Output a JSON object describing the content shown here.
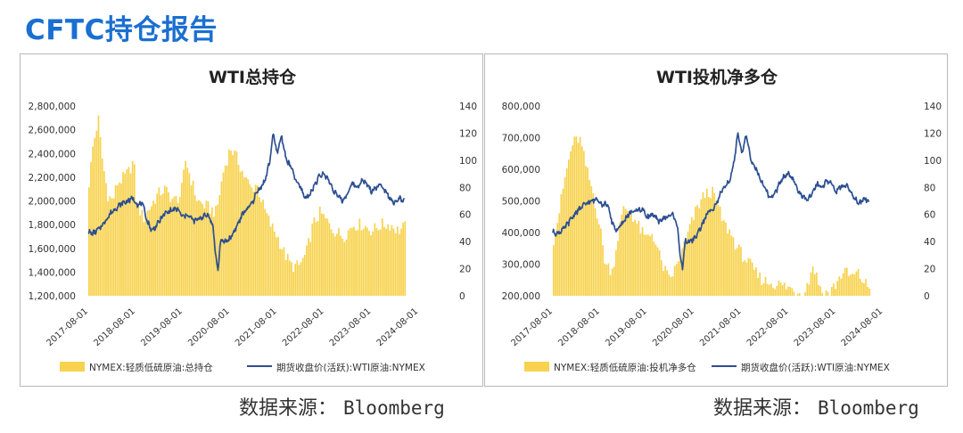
{
  "page": {
    "title": "CFTC持仓报告"
  },
  "colors": {
    "bar": "#f7d24e",
    "line": "#2d4f91",
    "title": "#1a6fd1"
  },
  "chart_data": [
    {
      "type": "bar",
      "title": "WTI总持仓",
      "x_labels": [
        "2017-08-01",
        "2018-08-01",
        "2019-08-01",
        "2020-08-01",
        "2021-08-01",
        "2022-08-01",
        "2023-08-01",
        "2024-08-01"
      ],
      "y_left": {
        "min": 1200000,
        "max": 2800000,
        "step": 200000,
        "ticks": [
          "1,200,000",
          "1,400,000",
          "1,600,000",
          "1,800,000",
          "2,000,000",
          "2,200,000",
          "2,400,000",
          "2,600,000",
          "2,800,000"
        ]
      },
      "y_right": {
        "min": 0,
        "max": 140,
        "step": 20,
        "ticks": [
          "0",
          "20",
          "40",
          "60",
          "80",
          "100",
          "120",
          "140"
        ]
      },
      "series": [
        {
          "name": "NYMEX:轻质低硫原油:总持仓",
          "kind": "bar",
          "anchors": [
            [
              0,
              2150000
            ],
            [
              0.08,
              2450000
            ],
            [
              0.15,
              2600000
            ],
            [
              0.21,
              2700000
            ],
            [
              0.25,
              2450000
            ],
            [
              0.3,
              2300000
            ],
            [
              0.4,
              2050000
            ],
            [
              0.5,
              2000000
            ],
            [
              0.6,
              2150000
            ],
            [
              0.75,
              2200000
            ],
            [
              0.85,
              2250000
            ],
            [
              0.95,
              2350000
            ],
            [
              1.0,
              2000000
            ],
            [
              1.15,
              1850000
            ],
            [
              1.3,
              1950000
            ],
            [
              1.45,
              2050000
            ],
            [
              1.6,
              2100000
            ],
            [
              1.8,
              2000000
            ],
            [
              1.95,
              2050000
            ],
            [
              2.05,
              2350000
            ],
            [
              2.15,
              2200000
            ],
            [
              2.3,
              2000000
            ],
            [
              2.5,
              1950000
            ],
            [
              2.7,
              1900000
            ],
            [
              2.85,
              2250000
            ],
            [
              3.0,
              2450000
            ],
            [
              3.15,
              2350000
            ],
            [
              3.3,
              2200000
            ],
            [
              3.45,
              2100000
            ],
            [
              3.55,
              2150000
            ],
            [
              3.7,
              1950000
            ],
            [
              3.85,
              1800000
            ],
            [
              4.0,
              1700000
            ],
            [
              4.15,
              1550000
            ],
            [
              4.3,
              1450000
            ],
            [
              4.45,
              1450000
            ],
            [
              4.6,
              1550000
            ],
            [
              4.75,
              1800000
            ],
            [
              4.9,
              1900000
            ],
            [
              5.0,
              1850000
            ],
            [
              5.2,
              1750000
            ],
            [
              5.4,
              1700000
            ],
            [
              5.6,
              1800000
            ],
            [
              5.8,
              1800000
            ],
            [
              6.0,
              1750000
            ],
            [
              6.2,
              1800000
            ],
            [
              6.4,
              1800000
            ],
            [
              6.55,
              1750000
            ],
            [
              6.7,
              1780000
            ]
          ]
        },
        {
          "name": "期货收盘价(活跃):WTI原油:NYMEX",
          "kind": "line",
          "axis": "right",
          "anchors": [
            [
              0,
              47
            ],
            [
              0.1,
              46
            ],
            [
              0.25,
              50
            ],
            [
              0.5,
              62
            ],
            [
              0.7,
              68
            ],
            [
              0.85,
              70
            ],
            [
              0.95,
              72
            ],
            [
              1.05,
              67
            ],
            [
              1.15,
              68
            ],
            [
              1.25,
              55
            ],
            [
              1.35,
              48
            ],
            [
              1.45,
              52
            ],
            [
              1.6,
              60
            ],
            [
              1.75,
              63
            ],
            [
              1.9,
              64
            ],
            [
              2.0,
              58
            ],
            [
              2.1,
              60
            ],
            [
              2.25,
              55
            ],
            [
              2.4,
              58
            ],
            [
              2.55,
              60
            ],
            [
              2.65,
              50
            ],
            [
              2.7,
              30
            ],
            [
              2.75,
              18
            ],
            [
              2.8,
              40
            ],
            [
              2.9,
              40
            ],
            [
              3.0,
              42
            ],
            [
              3.1,
              48
            ],
            [
              3.2,
              55
            ],
            [
              3.3,
              62
            ],
            [
              3.4,
              65
            ],
            [
              3.5,
              70
            ],
            [
              3.55,
              75
            ],
            [
              3.65,
              80
            ],
            [
              3.75,
              85
            ],
            [
              3.85,
              100
            ],
            [
              3.92,
              120
            ],
            [
              4.0,
              105
            ],
            [
              4.1,
              118
            ],
            [
              4.2,
              100
            ],
            [
              4.3,
              95
            ],
            [
              4.4,
              85
            ],
            [
              4.5,
              80
            ],
            [
              4.6,
              72
            ],
            [
              4.7,
              75
            ],
            [
              4.8,
              82
            ],
            [
              4.9,
              88
            ],
            [
              5.0,
              90
            ],
            [
              5.1,
              85
            ],
            [
              5.2,
              78
            ],
            [
              5.3,
              73
            ],
            [
              5.4,
              70
            ],
            [
              5.5,
              76
            ],
            [
              5.6,
              83
            ],
            [
              5.7,
              80
            ],
            [
              5.8,
              85
            ],
            [
              5.9,
              83
            ],
            [
              6.0,
              77
            ],
            [
              6.1,
              80
            ],
            [
              6.2,
              82
            ],
            [
              6.3,
              78
            ],
            [
              6.4,
              72
            ],
            [
              6.5,
              68
            ],
            [
              6.6,
              72
            ],
            [
              6.7,
              70
            ]
          ]
        }
      ]
    },
    {
      "type": "bar",
      "title": "WTI投机净多仓",
      "x_labels": [
        "2017-08-01",
        "2018-08-01",
        "2019-08-01",
        "2020-08-01",
        "2021-08-01",
        "2022-08-01",
        "2023-08-01",
        "2024-08-01"
      ],
      "y_left": {
        "min": 200000,
        "max": 800000,
        "step": 100000,
        "ticks": [
          "200,000",
          "300,000",
          "400,000",
          "500,000",
          "600,000",
          "700,000",
          "800,000"
        ]
      },
      "y_right": {
        "min": 0,
        "max": 140,
        "step": 20,
        "ticks": [
          "0",
          "20",
          "40",
          "60",
          "80",
          "100",
          "120",
          "140"
        ]
      },
      "series": [
        {
          "name": "NYMEX:轻质低硫原油:投机净多仓",
          "kind": "bar",
          "anchors": [
            [
              0,
              380000
            ],
            [
              0.1,
              450000
            ],
            [
              0.25,
              580000
            ],
            [
              0.4,
              680000
            ],
            [
              0.55,
              700000
            ],
            [
              0.7,
              600000
            ],
            [
              0.85,
              520000
            ],
            [
              1.0,
              400000
            ],
            [
              1.1,
              300000
            ],
            [
              1.25,
              280000
            ],
            [
              1.4,
              420000
            ],
            [
              1.5,
              480000
            ],
            [
              1.65,
              460000
            ],
            [
              1.8,
              420000
            ],
            [
              1.95,
              380000
            ],
            [
              2.1,
              400000
            ],
            [
              2.3,
              300000
            ],
            [
              2.45,
              250000
            ],
            [
              2.6,
              290000
            ],
            [
              2.75,
              350000
            ],
            [
              2.9,
              420000
            ],
            [
              3.05,
              480000
            ],
            [
              3.2,
              520000
            ],
            [
              3.35,
              530000
            ],
            [
              3.45,
              500000
            ],
            [
              3.6,
              430000
            ],
            [
              3.75,
              400000
            ],
            [
              3.9,
              350000
            ],
            [
              4.05,
              320000
            ],
            [
              4.2,
              290000
            ],
            [
              4.35,
              260000
            ],
            [
              4.5,
              245000
            ],
            [
              4.65,
              240000
            ],
            [
              4.8,
              235000
            ],
            [
              5.0,
              225000
            ],
            [
              5.15,
              215000
            ],
            [
              5.3,
              210000
            ],
            [
              5.4,
              240000
            ],
            [
              5.5,
              300000
            ],
            [
              5.6,
              250000
            ],
            [
              5.7,
              210000
            ],
            [
              5.85,
              210000
            ],
            [
              6.0,
              240000
            ],
            [
              6.15,
              280000
            ],
            [
              6.3,
              260000
            ],
            [
              6.45,
              270000
            ],
            [
              6.6,
              240000
            ],
            [
              6.7,
              225000
            ]
          ]
        },
        {
          "name": "期货收盘价(活跃):WTI原油:NYMEX",
          "kind": "line",
          "axis": "right",
          "anchors": [
            [
              0,
              47
            ],
            [
              0.1,
              46
            ],
            [
              0.25,
              50
            ],
            [
              0.5,
              62
            ],
            [
              0.7,
              68
            ],
            [
              0.85,
              70
            ],
            [
              0.95,
              72
            ],
            [
              1.05,
              67
            ],
            [
              1.15,
              68
            ],
            [
              1.25,
              55
            ],
            [
              1.35,
              48
            ],
            [
              1.45,
              52
            ],
            [
              1.6,
              60
            ],
            [
              1.75,
              63
            ],
            [
              1.9,
              64
            ],
            [
              2.0,
              58
            ],
            [
              2.1,
              60
            ],
            [
              2.25,
              55
            ],
            [
              2.4,
              58
            ],
            [
              2.55,
              60
            ],
            [
              2.65,
              50
            ],
            [
              2.7,
              30
            ],
            [
              2.75,
              18
            ],
            [
              2.8,
              40
            ],
            [
              2.9,
              40
            ],
            [
              3.0,
              42
            ],
            [
              3.1,
              48
            ],
            [
              3.2,
              55
            ],
            [
              3.3,
              62
            ],
            [
              3.4,
              65
            ],
            [
              3.5,
              70
            ],
            [
              3.55,
              75
            ],
            [
              3.65,
              80
            ],
            [
              3.75,
              85
            ],
            [
              3.85,
              100
            ],
            [
              3.92,
              120
            ],
            [
              4.0,
              105
            ],
            [
              4.1,
              118
            ],
            [
              4.2,
              100
            ],
            [
              4.3,
              95
            ],
            [
              4.4,
              85
            ],
            [
              4.5,
              80
            ],
            [
              4.6,
              72
            ],
            [
              4.7,
              75
            ],
            [
              4.8,
              82
            ],
            [
              4.9,
              88
            ],
            [
              5.0,
              90
            ],
            [
              5.1,
              85
            ],
            [
              5.2,
              78
            ],
            [
              5.3,
              73
            ],
            [
              5.4,
              70
            ],
            [
              5.5,
              76
            ],
            [
              5.6,
              83
            ],
            [
              5.7,
              80
            ],
            [
              5.8,
              85
            ],
            [
              5.9,
              83
            ],
            [
              6.0,
              77
            ],
            [
              6.1,
              80
            ],
            [
              6.2,
              82
            ],
            [
              6.3,
              78
            ],
            [
              6.4,
              72
            ],
            [
              6.5,
              68
            ],
            [
              6.6,
              72
            ],
            [
              6.7,
              70
            ]
          ]
        }
      ]
    }
  ],
  "sources": [
    {
      "label": "数据来源：",
      "value": "Bloomberg"
    },
    {
      "label": "数据来源：",
      "value": "Bloomberg"
    }
  ]
}
